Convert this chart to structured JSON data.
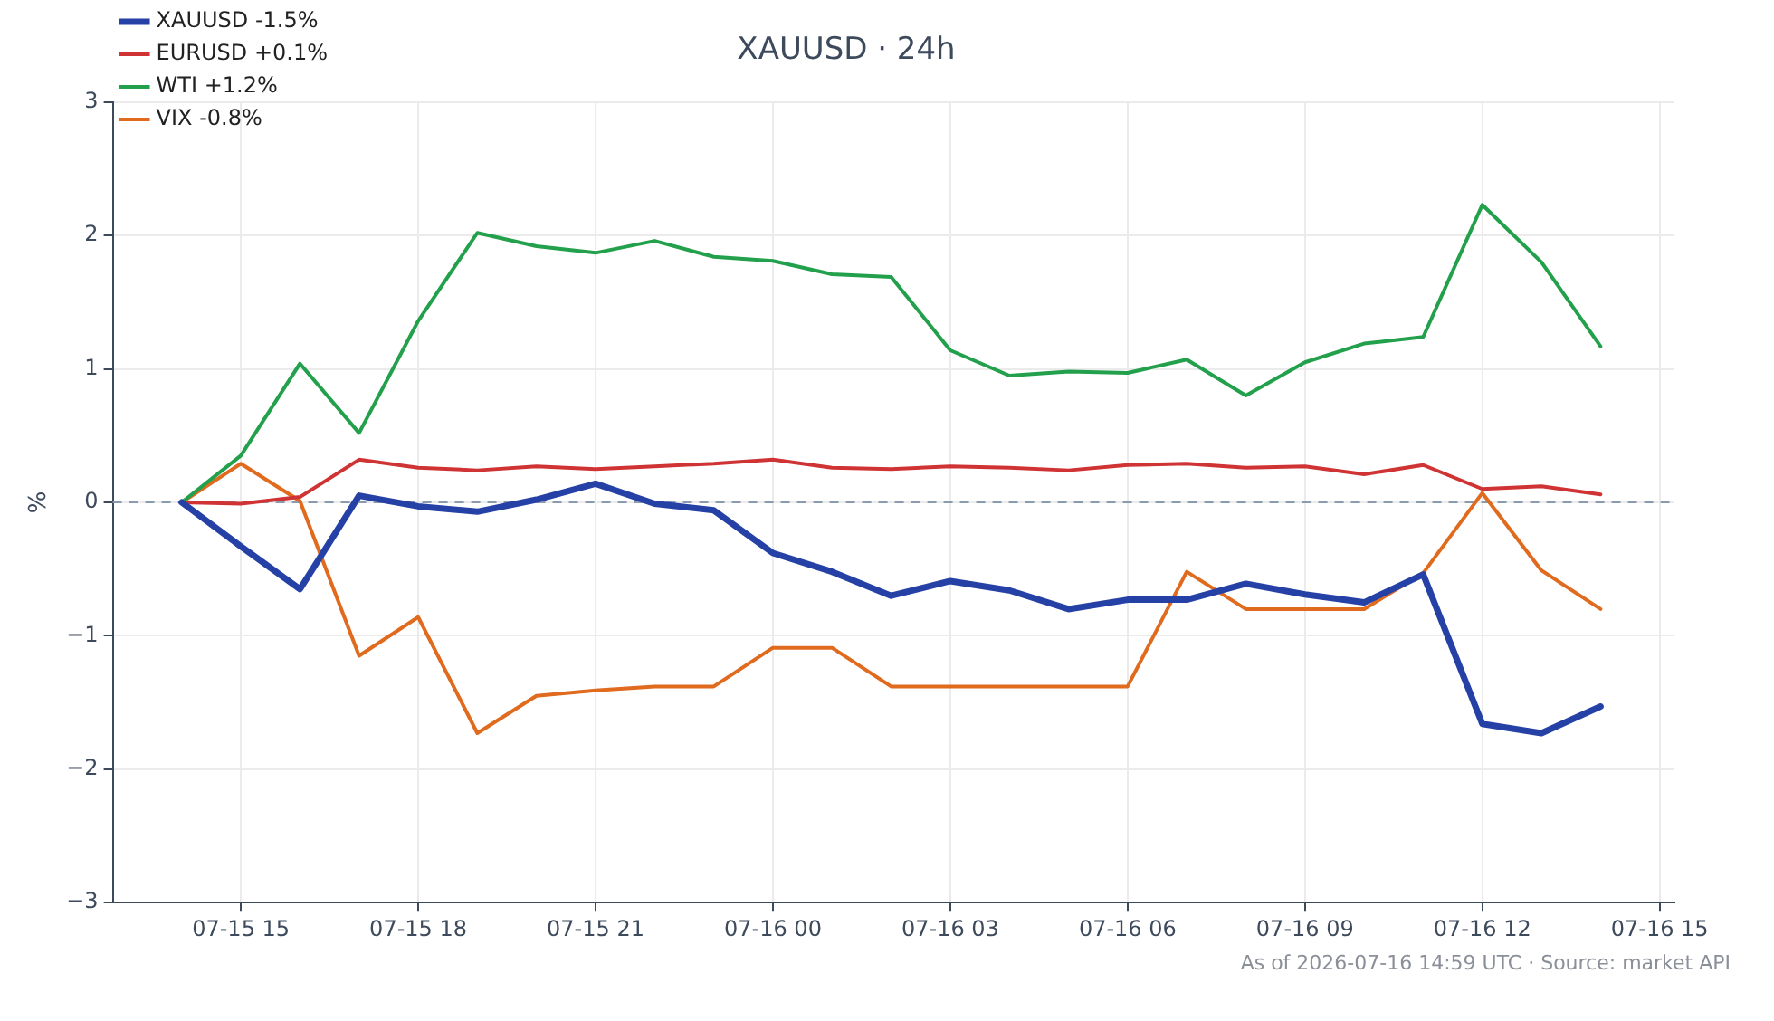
{
  "chart_data": {
    "type": "line",
    "title": "XAUUSD · 24h",
    "ylabel": "%",
    "x": [
      "2026-07-15T14:00",
      "2026-07-15T15:00",
      "2026-07-15T16:00",
      "2026-07-15T17:00",
      "2026-07-15T18:00",
      "2026-07-15T19:00",
      "2026-07-15T20:00",
      "2026-07-15T21:00",
      "2026-07-15T22:00",
      "2026-07-15T23:00",
      "2026-07-16T00:00",
      "2026-07-16T01:00",
      "2026-07-16T02:00",
      "2026-07-16T03:00",
      "2026-07-16T04:00",
      "2026-07-16T05:00",
      "2026-07-16T06:00",
      "2026-07-16T07:00",
      "2026-07-16T08:00",
      "2026-07-16T09:00",
      "2026-07-16T10:00",
      "2026-07-16T11:00",
      "2026-07-16T12:00",
      "2026-07-16T13:00",
      "2026-07-16T14:00"
    ],
    "series": [
      {
        "name": "XAUUSD -1.5%",
        "color": "#2541a6",
        "values": [
          0,
          -0.33,
          -0.65,
          0.05,
          -0.03,
          -0.07,
          0.02,
          0.14,
          -0.01,
          -0.06,
          -0.38,
          -0.52,
          -0.7,
          -0.59,
          -0.66,
          -0.8,
          -0.73,
          -0.73,
          -0.61,
          -0.69,
          -0.75,
          -0.54,
          -1.66,
          -1.73,
          -1.53
        ]
      },
      {
        "name": "EURUSD +0.1%",
        "color": "#d03333",
        "values": [
          0,
          -0.01,
          0.04,
          0.32,
          0.26,
          0.24,
          0.27,
          0.25,
          0.27,
          0.29,
          0.32,
          0.26,
          0.25,
          0.27,
          0.26,
          0.24,
          0.28,
          0.29,
          0.26,
          0.27,
          0.21,
          0.28,
          0.1,
          0.12,
          0.06
        ]
      },
      {
        "name": "WTI +1.2%",
        "color": "#22a04b",
        "values": [
          0,
          0.35,
          1.04,
          0.52,
          1.36,
          2.02,
          1.92,
          1.87,
          1.96,
          1.84,
          1.81,
          1.71,
          1.69,
          1.14,
          0.95,
          0.98,
          0.97,
          1.07,
          0.8,
          1.05,
          1.19,
          1.24,
          2.23,
          1.8,
          1.17
        ]
      },
      {
        "name": "VIX -0.8%",
        "color": "#e06a1e",
        "values": [
          0,
          0.29,
          0.01,
          -1.15,
          -0.86,
          -1.73,
          -1.45,
          -1.41,
          -1.38,
          -1.38,
          -1.09,
          -1.09,
          -1.38,
          -1.38,
          -1.38,
          -1.38,
          -1.38,
          -0.52,
          -0.8,
          -0.8,
          -0.8,
          -0.53,
          0.07,
          -0.51,
          -0.8
        ]
      }
    ],
    "xlim": [
      "2026-07-15T12:50",
      "2026-07-16T15:15"
    ],
    "xticks": [
      {
        "value": "2026-07-15T15:00",
        "label": "07-15 15"
      },
      {
        "value": "2026-07-15T18:00",
        "label": "07-15 18"
      },
      {
        "value": "2026-07-15T21:00",
        "label": "07-15 21"
      },
      {
        "value": "2026-07-16T00:00",
        "label": "07-16 00"
      },
      {
        "value": "2026-07-16T03:00",
        "label": "07-16 03"
      },
      {
        "value": "2026-07-16T06:00",
        "label": "07-16 06"
      },
      {
        "value": "2026-07-16T09:00",
        "label": "07-16 09"
      },
      {
        "value": "2026-07-16T12:00",
        "label": "07-16 12"
      },
      {
        "value": "2026-07-16T15:00",
        "label": "07-16 15"
      }
    ],
    "ylim": [
      -3,
      3
    ],
    "yticks": [
      {
        "value": -3,
        "label": "−3"
      },
      {
        "value": -2,
        "label": "−2"
      },
      {
        "value": -1,
        "label": "−1"
      },
      0,
      1,
      2,
      3
    ],
    "ref_lines": [
      {
        "axis": "y",
        "value": 0,
        "color": "#8a9ab0",
        "line_style": "dashed"
      }
    ],
    "grid": true,
    "legend": "top left",
    "marker": "none",
    "line_style": "solid",
    "annotations": [
      "As of 2026-07-16 14:59 UTC · Source: market API"
    ]
  }
}
